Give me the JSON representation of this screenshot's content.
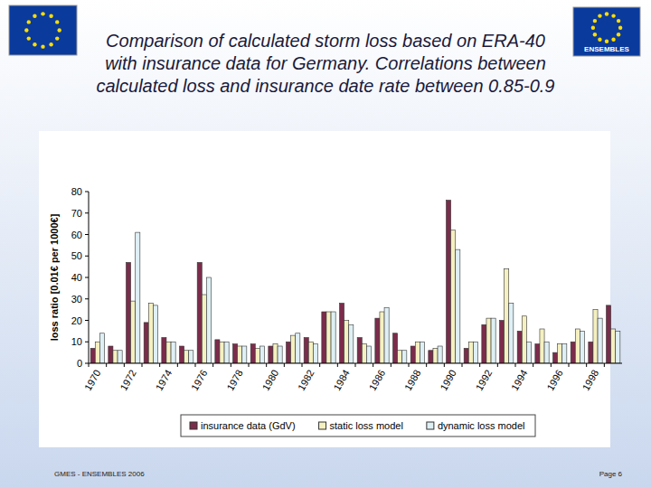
{
  "chart_data": {
    "type": "bar",
    "title": "Comparison of calculated storm loss based on ERA-40 with insurance data for Germany. Correlations between calculated loss and insurance date rate between 0.85-0.9",
    "y_label": "loss ratio [0.01€ per 1000€]",
    "categories": [
      "1970",
      null,
      "1972",
      null,
      "1974",
      null,
      "1976",
      null,
      "1978",
      null,
      "1980",
      null,
      "1982",
      null,
      "1984",
      null,
      "1986",
      null,
      "1988",
      null,
      "1990",
      null,
      "1992",
      null,
      "1994",
      null,
      "1996",
      null,
      "1998",
      null
    ],
    "series": [
      {
        "name": "insurance data (GdV)",
        "color": "#7b2c4a",
        "values": [
          7,
          8,
          47,
          19,
          12,
          8,
          47,
          11,
          9,
          9,
          8,
          10,
          12,
          24,
          28,
          12,
          21,
          14,
          8,
          6,
          76,
          7,
          18,
          20,
          15,
          9,
          5,
          10,
          10,
          27
        ]
      },
      {
        "name": "static loss model",
        "color": "#f5f0c0",
        "values": [
          10,
          6,
          29,
          28,
          10,
          6,
          32,
          10,
          8,
          7,
          9,
          13,
          10,
          24,
          20,
          9,
          24,
          6,
          10,
          7,
          62,
          10,
          21,
          44,
          22,
          16,
          9,
          16,
          25,
          16
        ]
      },
      {
        "name": "dynamic loss model",
        "color": "#dff0f5",
        "values": [
          14,
          6,
          61,
          27,
          10,
          6,
          40,
          10,
          8,
          8,
          8,
          14,
          9,
          24,
          18,
          8,
          26,
          6,
          10,
          8,
          53,
          10,
          21,
          28,
          10,
          10,
          9,
          15,
          21,
          15
        ]
      }
    ],
    "ylim": [
      0,
      80
    ],
    "yticks": [
      0,
      10,
      20,
      30,
      40,
      50,
      60,
      70,
      80
    ],
    "grid": false,
    "legend": "bottom"
  },
  "slide": {
    "logo_text": "ENSEMBLES",
    "footer_left": "GMES - ENSEMBLES 2006",
    "footer_right": "Page 6"
  }
}
